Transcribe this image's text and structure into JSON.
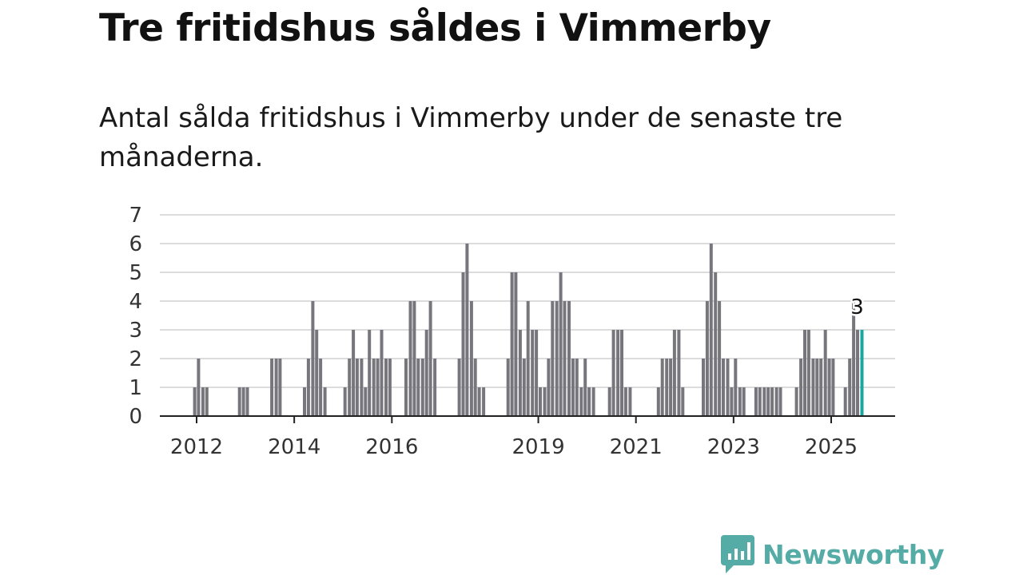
{
  "header": {
    "title": "Tre fritidshus såldes i Vimmerby",
    "subtitle": "Antal sålda fritidshus i Vimmerby under de senaste tre månaderna."
  },
  "brand": {
    "name": "Newsworthy"
  },
  "colors": {
    "bar": "#77767c",
    "highlight": "#1aa7a1",
    "brand": "#55aba6",
    "grid": "#dcdcdc"
  },
  "chart_data": {
    "type": "bar",
    "ylim": [
      0,
      7
    ],
    "yticks": [
      "0",
      "1",
      "2",
      "3",
      "4",
      "5",
      "6",
      "7"
    ],
    "xtick_labels": [
      {
        "label": "2012",
        "x": 2012
      },
      {
        "label": "2014",
        "x": 2014
      },
      {
        "label": "2016",
        "x": 2016
      },
      {
        "label": "2019",
        "x": 2019
      },
      {
        "label": "2021",
        "x": 2021
      },
      {
        "label": "2023",
        "x": 2023
      },
      {
        "label": "2025",
        "x": 2025
      }
    ],
    "highlight_label": "3",
    "data": [
      {
        "x": 2011.96,
        "y": 1
      },
      {
        "x": 2012.04,
        "y": 2
      },
      {
        "x": 2012.13,
        "y": 1
      },
      {
        "x": 2012.21,
        "y": 1
      },
      {
        "x": 2012.88,
        "y": 1
      },
      {
        "x": 2012.96,
        "y": 1
      },
      {
        "x": 2013.04,
        "y": 1
      },
      {
        "x": 2013.54,
        "y": 2
      },
      {
        "x": 2013.63,
        "y": 2
      },
      {
        "x": 2013.71,
        "y": 2
      },
      {
        "x": 2014.21,
        "y": 1
      },
      {
        "x": 2014.29,
        "y": 2
      },
      {
        "x": 2014.38,
        "y": 4
      },
      {
        "x": 2014.46,
        "y": 3
      },
      {
        "x": 2014.54,
        "y": 2
      },
      {
        "x": 2014.63,
        "y": 1
      },
      {
        "x": 2015.04,
        "y": 1
      },
      {
        "x": 2015.13,
        "y": 2
      },
      {
        "x": 2015.21,
        "y": 3
      },
      {
        "x": 2015.29,
        "y": 2
      },
      {
        "x": 2015.38,
        "y": 2
      },
      {
        "x": 2015.46,
        "y": 1
      },
      {
        "x": 2015.54,
        "y": 3
      },
      {
        "x": 2015.63,
        "y": 2
      },
      {
        "x": 2015.71,
        "y": 2
      },
      {
        "x": 2015.79,
        "y": 3
      },
      {
        "x": 2015.88,
        "y": 2
      },
      {
        "x": 2015.96,
        "y": 2
      },
      {
        "x": 2016.29,
        "y": 2
      },
      {
        "x": 2016.38,
        "y": 4
      },
      {
        "x": 2016.46,
        "y": 4
      },
      {
        "x": 2016.54,
        "y": 2
      },
      {
        "x": 2016.63,
        "y": 2
      },
      {
        "x": 2016.71,
        "y": 3
      },
      {
        "x": 2016.79,
        "y": 4
      },
      {
        "x": 2016.88,
        "y": 2
      },
      {
        "x": 2017.38,
        "y": 2
      },
      {
        "x": 2017.46,
        "y": 5
      },
      {
        "x": 2017.54,
        "y": 6
      },
      {
        "x": 2017.63,
        "y": 4
      },
      {
        "x": 2017.71,
        "y": 2
      },
      {
        "x": 2017.79,
        "y": 1
      },
      {
        "x": 2017.88,
        "y": 1
      },
      {
        "x": 2018.38,
        "y": 2
      },
      {
        "x": 2018.46,
        "y": 5
      },
      {
        "x": 2018.54,
        "y": 5
      },
      {
        "x": 2018.63,
        "y": 3
      },
      {
        "x": 2018.71,
        "y": 2
      },
      {
        "x": 2018.79,
        "y": 4
      },
      {
        "x": 2018.88,
        "y": 3
      },
      {
        "x": 2018.96,
        "y": 3
      },
      {
        "x": 2019.04,
        "y": 1
      },
      {
        "x": 2019.13,
        "y": 1
      },
      {
        "x": 2019.21,
        "y": 2
      },
      {
        "x": 2019.29,
        "y": 4
      },
      {
        "x": 2019.38,
        "y": 4
      },
      {
        "x": 2019.46,
        "y": 5
      },
      {
        "x": 2019.54,
        "y": 4
      },
      {
        "x": 2019.63,
        "y": 4
      },
      {
        "x": 2019.71,
        "y": 2
      },
      {
        "x": 2019.79,
        "y": 2
      },
      {
        "x": 2019.88,
        "y": 1
      },
      {
        "x": 2019.96,
        "y": 2
      },
      {
        "x": 2020.04,
        "y": 1
      },
      {
        "x": 2020.13,
        "y": 1
      },
      {
        "x": 2020.46,
        "y": 1
      },
      {
        "x": 2020.54,
        "y": 3
      },
      {
        "x": 2020.63,
        "y": 3
      },
      {
        "x": 2020.71,
        "y": 3
      },
      {
        "x": 2020.79,
        "y": 1
      },
      {
        "x": 2020.88,
        "y": 1
      },
      {
        "x": 2021.46,
        "y": 1
      },
      {
        "x": 2021.54,
        "y": 2
      },
      {
        "x": 2021.63,
        "y": 2
      },
      {
        "x": 2021.71,
        "y": 2
      },
      {
        "x": 2021.79,
        "y": 3
      },
      {
        "x": 2021.88,
        "y": 3
      },
      {
        "x": 2021.96,
        "y": 1
      },
      {
        "x": 2022.38,
        "y": 2
      },
      {
        "x": 2022.46,
        "y": 4
      },
      {
        "x": 2022.54,
        "y": 6
      },
      {
        "x": 2022.63,
        "y": 5
      },
      {
        "x": 2022.71,
        "y": 4
      },
      {
        "x": 2022.79,
        "y": 2
      },
      {
        "x": 2022.88,
        "y": 2
      },
      {
        "x": 2022.96,
        "y": 1
      },
      {
        "x": 2023.04,
        "y": 2
      },
      {
        "x": 2023.13,
        "y": 1
      },
      {
        "x": 2023.21,
        "y": 1
      },
      {
        "x": 2023.46,
        "y": 1
      },
      {
        "x": 2023.54,
        "y": 1
      },
      {
        "x": 2023.63,
        "y": 1
      },
      {
        "x": 2023.71,
        "y": 1
      },
      {
        "x": 2023.79,
        "y": 1
      },
      {
        "x": 2023.88,
        "y": 1
      },
      {
        "x": 2023.96,
        "y": 1
      },
      {
        "x": 2024.29,
        "y": 1
      },
      {
        "x": 2024.38,
        "y": 2
      },
      {
        "x": 2024.46,
        "y": 3
      },
      {
        "x": 2024.54,
        "y": 3
      },
      {
        "x": 2024.63,
        "y": 2
      },
      {
        "x": 2024.71,
        "y": 2
      },
      {
        "x": 2024.79,
        "y": 2
      },
      {
        "x": 2024.88,
        "y": 3
      },
      {
        "x": 2024.96,
        "y": 2
      },
      {
        "x": 2025.04,
        "y": 2
      },
      {
        "x": 2025.29,
        "y": 1
      },
      {
        "x": 2025.38,
        "y": 2
      },
      {
        "x": 2025.46,
        "y": 4
      },
      {
        "x": 2025.54,
        "y": 3
      },
      {
        "x": 2025.63,
        "y": 3,
        "highlight": true
      }
    ]
  }
}
